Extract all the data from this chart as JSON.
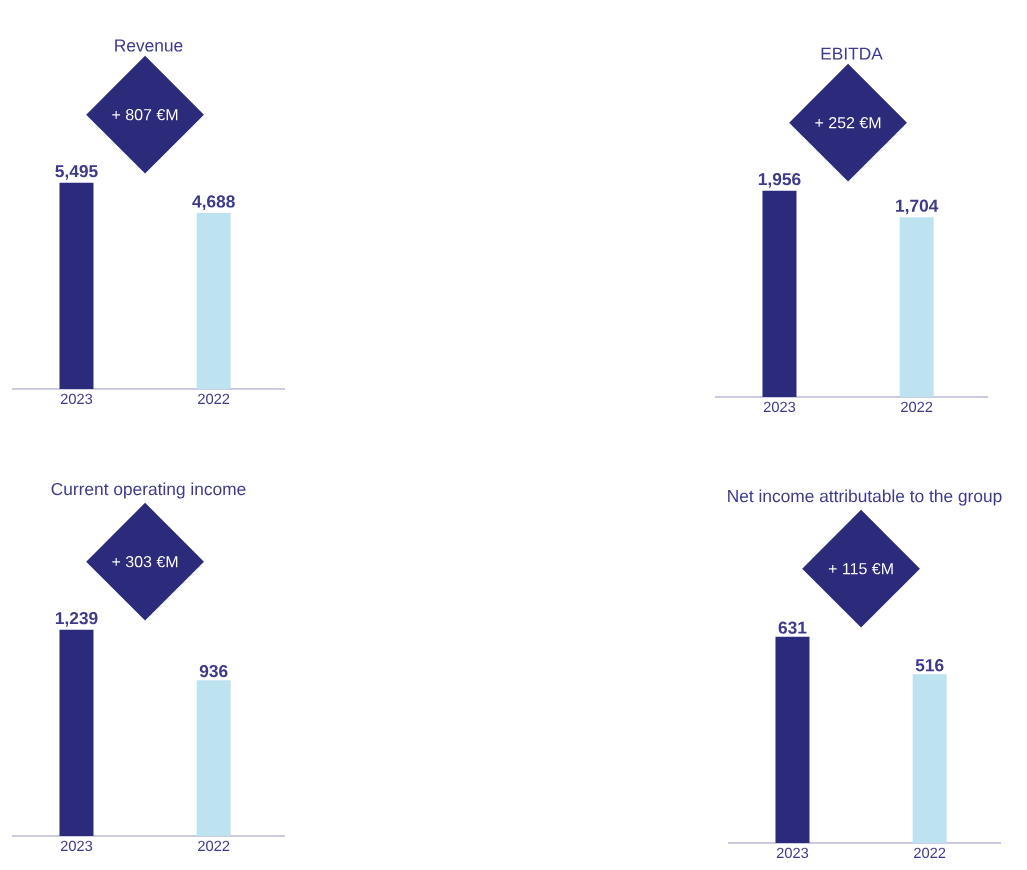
{
  "chart_data": [
    {
      "type": "bar",
      "title": "Revenue",
      "categories": [
        "2023",
        "2022"
      ],
      "values": [
        5495,
        4688
      ],
      "value_labels": [
        "5,495",
        "4,688"
      ],
      "colors": [
        "#2b2a7b",
        "#bde3f1"
      ],
      "annotations": [
        "+ 807 €M"
      ]
    },
    {
      "type": "bar",
      "title": "EBITDA",
      "categories": [
        "2023",
        "2022"
      ],
      "values": [
        1956,
        1704
      ],
      "value_labels": [
        "1,956",
        "1,704"
      ],
      "colors": [
        "#2b2a7b",
        "#bde3f1"
      ],
      "annotations": [
        "+ 252 €M"
      ]
    },
    {
      "type": "bar",
      "title": "Current operating income",
      "categories": [
        "2023",
        "2022"
      ],
      "values": [
        1239,
        936
      ],
      "value_labels": [
        "1,239",
        "936"
      ],
      "colors": [
        "#2b2a7b",
        "#bde3f1"
      ],
      "annotations": [
        "+ 303 €M"
      ]
    },
    {
      "type": "bar",
      "title": "Net income attributable to the group",
      "categories": [
        "2023",
        "2022"
      ],
      "values": [
        631,
        516
      ],
      "value_labels": [
        "631",
        "516"
      ],
      "colors": [
        "#2b2a7b",
        "#bde3f1"
      ],
      "annotations": [
        "+ 115 €M"
      ]
    }
  ]
}
